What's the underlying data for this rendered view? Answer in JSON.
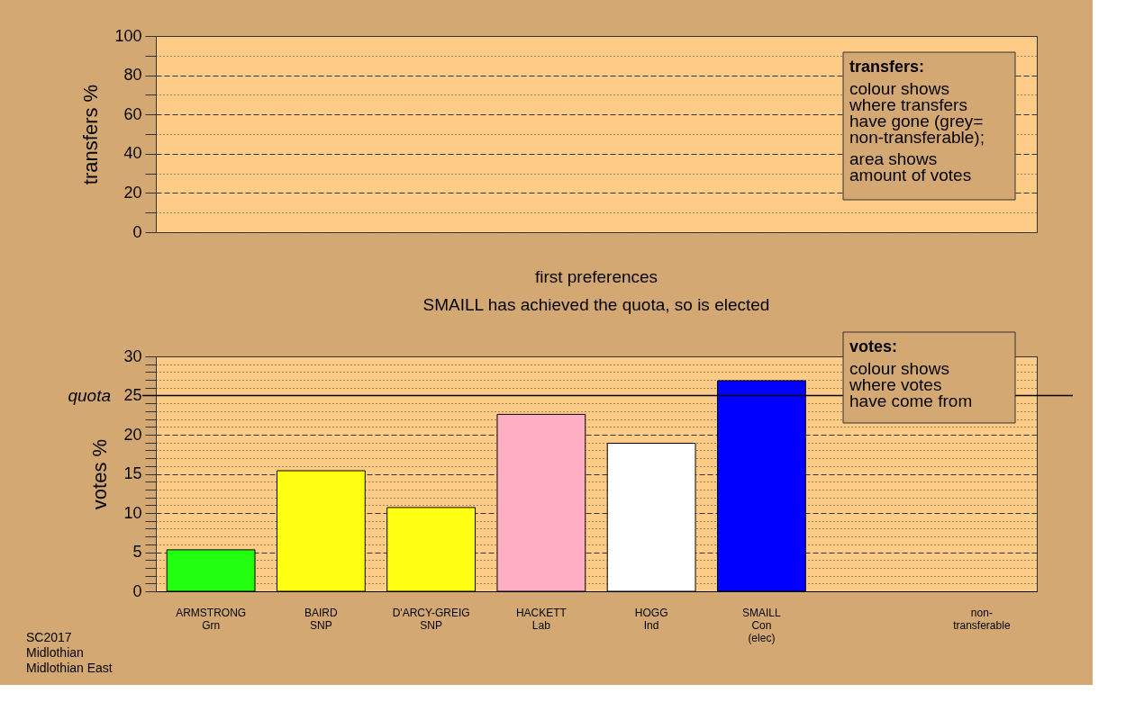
{
  "chart_data": [
    {
      "type": "bar",
      "ylabel": "transfers %",
      "categories": [
        null,
        null,
        null,
        null,
        null,
        null,
        null,
        null
      ],
      "values": [
        null,
        null,
        null,
        null,
        null,
        null,
        null,
        null
      ],
      "ylim": [
        0,
        100
      ],
      "yticks": [
        0,
        {
          "value": 10,
          "label": null
        },
        20,
        {
          "value": 30,
          "label": null
        },
        40,
        {
          "value": 50,
          "label": null
        },
        60,
        {
          "value": 70,
          "label": null
        },
        80,
        {
          "value": 90,
          "label": null
        },
        100
      ],
      "grid": "y",
      "tick_labels": "y",
      "annotations": [
        "transfers:",
        "colour shows\nwhere transfers\nhave gone (grey=\nnon-transferable);",
        "area shows\namount of votes"
      ]
    },
    {
      "type": "bar",
      "title": "first preferences",
      "subtitle": "SMAILL has achieved the quota, so is elected",
      "ylabel": "votes %",
      "categories": [
        "ARMSTRONG\nGrn",
        "BAIRD\nSNP",
        "D'ARCY-GREIG\nSNP",
        "HACKETT\nLab",
        "HOGG\nInd",
        "SMAILL\nCon\n(elec)",
        null,
        "non-\ntransferable"
      ],
      "values": [
        5.3,
        15.4,
        10.7,
        22.6,
        18.9,
        26.9,
        null,
        null
      ],
      "colors": [
        "#22ff11",
        "#ffff11",
        "#ffff11",
        "#ffaec4",
        "#ffffff",
        "#0000ff",
        "#ffffff",
        "#ffffff"
      ],
      "ylim": [
        0,
        30
      ],
      "yticks": [
        0,
        {
          "value": 1,
          "label": null
        },
        {
          "value": 2,
          "label": null
        },
        {
          "value": 3,
          "label": null
        },
        {
          "value": 4,
          "label": null
        },
        5,
        {
          "value": 6,
          "label": null
        },
        {
          "value": 7,
          "label": null
        },
        {
          "value": 8,
          "label": null
        },
        {
          "value": 9,
          "label": null
        },
        10,
        {
          "value": 11,
          "label": null
        },
        {
          "value": 12,
          "label": null
        },
        {
          "value": 13,
          "label": null
        },
        {
          "value": 14,
          "label": null
        },
        15,
        {
          "value": 16,
          "label": null
        },
        {
          "value": 17,
          "label": null
        },
        {
          "value": 18,
          "label": null
        },
        {
          "value": 19,
          "label": null
        },
        20,
        {
          "value": 21,
          "label": null
        },
        {
          "value": 22,
          "label": null
        },
        {
          "value": 23,
          "label": null
        },
        {
          "value": 24,
          "label": null
        },
        25,
        {
          "value": 26,
          "label": null
        },
        {
          "value": 27,
          "label": null
        },
        {
          "value": 28,
          "label": null
        },
        {
          "value": 29,
          "label": null
        },
        30
      ],
      "grid": "y",
      "ref_lines": [
        {
          "axis": "y",
          "value": 25,
          "label": "quota",
          "color": "#000000",
          "line_style": "solid"
        }
      ],
      "annotations": [
        "votes:",
        "colour shows\nwhere votes\nhave come from",
        "SC2017\nMidlothian\nMidlothian East"
      ]
    }
  ]
}
